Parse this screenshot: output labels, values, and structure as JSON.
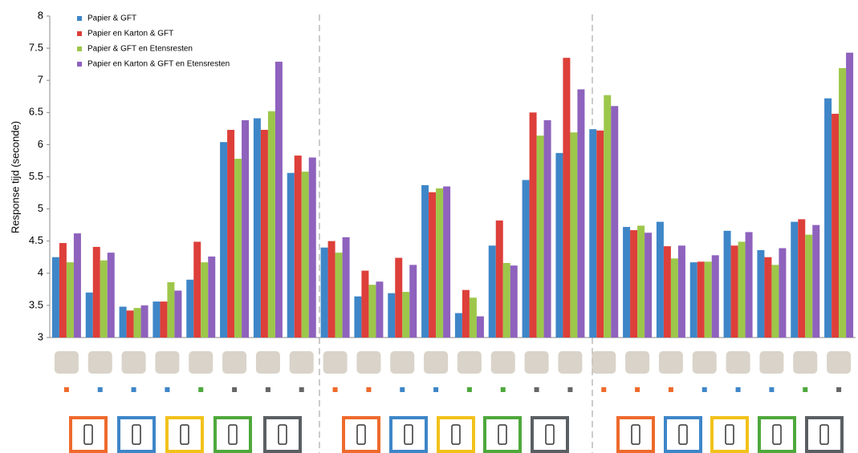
{
  "chart_data": {
    "type": "bar",
    "y_label": "Response tijd (seconde)",
    "categories": [
      null,
      null,
      null,
      null,
      null,
      null,
      null,
      null,
      null,
      null,
      null,
      null,
      null,
      null,
      null,
      null,
      null,
      null,
      null,
      null,
      null,
      null,
      null,
      null
    ],
    "series": [
      {
        "name": "Papier & GFT",
        "color": "#3e86c8",
        "values": [
          4.25,
          3.7,
          3.48,
          3.56,
          3.9,
          6.04,
          6.41,
          5.56,
          4.4,
          3.64,
          3.69,
          5.37,
          3.38,
          4.43,
          5.45,
          5.87,
          6.24,
          4.72,
          4.8,
          4.17,
          4.66,
          4.36,
          4.8,
          6.72
        ]
      },
      {
        "name": "Papier en Karton & GFT",
        "color": "#dd3f3a",
        "values": [
          4.47,
          4.41,
          3.42,
          3.56,
          4.49,
          6.23,
          6.23,
          5.83,
          4.5,
          4.04,
          4.24,
          5.26,
          3.74,
          4.82,
          6.5,
          7.35,
          6.22,
          4.67,
          4.42,
          4.18,
          4.43,
          4.25,
          4.84,
          6.48
        ]
      },
      {
        "name": "Papier & GFT en Etensresten",
        "color": "#9dc74a",
        "values": [
          4.17,
          4.2,
          3.46,
          3.86,
          4.17,
          5.78,
          6.52,
          5.58,
          4.32,
          3.82,
          3.71,
          5.32,
          3.62,
          4.16,
          6.14,
          6.19,
          6.77,
          4.74,
          4.23,
          4.18,
          4.49,
          4.13,
          4.6,
          7.19
        ]
      },
      {
        "name": "Papier en Karton & GFT en Etensresten",
        "color": "#8e62bd",
        "values": [
          4.62,
          4.32,
          3.5,
          3.73,
          4.26,
          6.38,
          7.29,
          5.8,
          4.56,
          3.87,
          4.13,
          5.35,
          3.33,
          4.12,
          6.38,
          6.86,
          6.6,
          4.63,
          4.43,
          4.28,
          4.64,
          4.39,
          4.75,
          7.43
        ]
      }
    ],
    "ylim": [
      3,
      8
    ],
    "yticks": [
      3,
      3.5,
      4,
      4.5,
      5,
      5.5,
      6,
      6.5,
      7,
      7.5,
      8
    ]
  }
}
